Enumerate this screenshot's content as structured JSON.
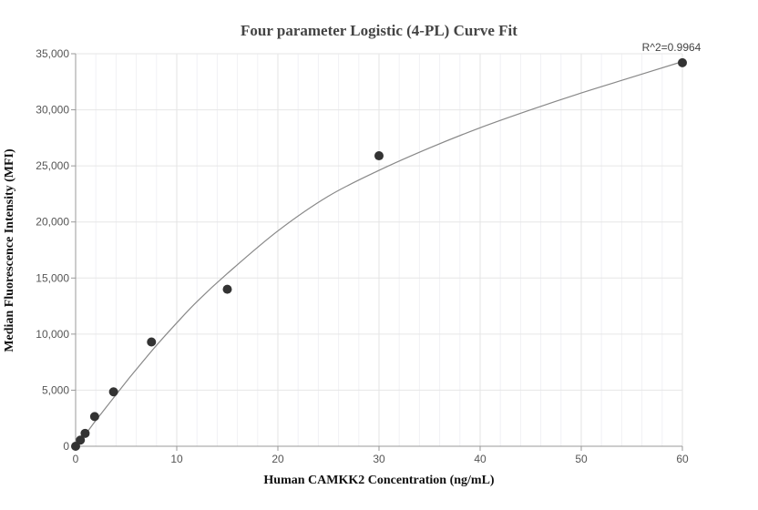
{
  "chart_data": {
    "type": "scatter",
    "title": "Four parameter Logistic (4-PL) Curve Fit",
    "xlabel": "Human CAMKK2 Concentration (ng/mL)",
    "ylabel": "Median Fluorescence Intensity (MFI)",
    "xlim": [
      0,
      60
    ],
    "ylim": [
      0,
      35000
    ],
    "x_ticks": [
      0,
      10,
      20,
      30,
      40,
      50,
      60
    ],
    "x_tick_labels": [
      "0",
      "10",
      "20",
      "30",
      "40",
      "50",
      "60"
    ],
    "y_ticks": [
      0,
      5000,
      10000,
      15000,
      20000,
      25000,
      30000,
      35000
    ],
    "y_tick_labels": [
      "0",
      "5,000",
      "10,000",
      "15,000",
      "20,000",
      "25,000",
      "30,000",
      "35,000"
    ],
    "grid": true,
    "points": [
      {
        "x": 0,
        "y": 0
      },
      {
        "x": 0.47,
        "y": 550
      },
      {
        "x": 0.94,
        "y": 1150
      },
      {
        "x": 1.88,
        "y": 2650
      },
      {
        "x": 3.75,
        "y": 4850
      },
      {
        "x": 7.5,
        "y": 9300
      },
      {
        "x": 15,
        "y": 14000
      },
      {
        "x": 30,
        "y": 25900
      },
      {
        "x": 60,
        "y": 34200
      }
    ],
    "fit_curve": {
      "x": [
        0,
        1,
        2,
        3,
        4,
        5,
        6,
        8,
        10,
        12,
        15,
        20,
        25,
        30,
        35,
        40,
        45,
        50,
        55,
        60
      ],
      "y": [
        0,
        1100,
        2300,
        3450,
        4600,
        5750,
        6850,
        9000,
        11000,
        12900,
        15400,
        19200,
        22300,
        24600,
        26600,
        28400,
        30000,
        31500,
        32900,
        34300
      ]
    },
    "annotation": "R^2=0.9964",
    "colors": {
      "points": "#333333",
      "curve": "#888888",
      "grid": "#e6e6e6",
      "axis": "#999999"
    }
  }
}
